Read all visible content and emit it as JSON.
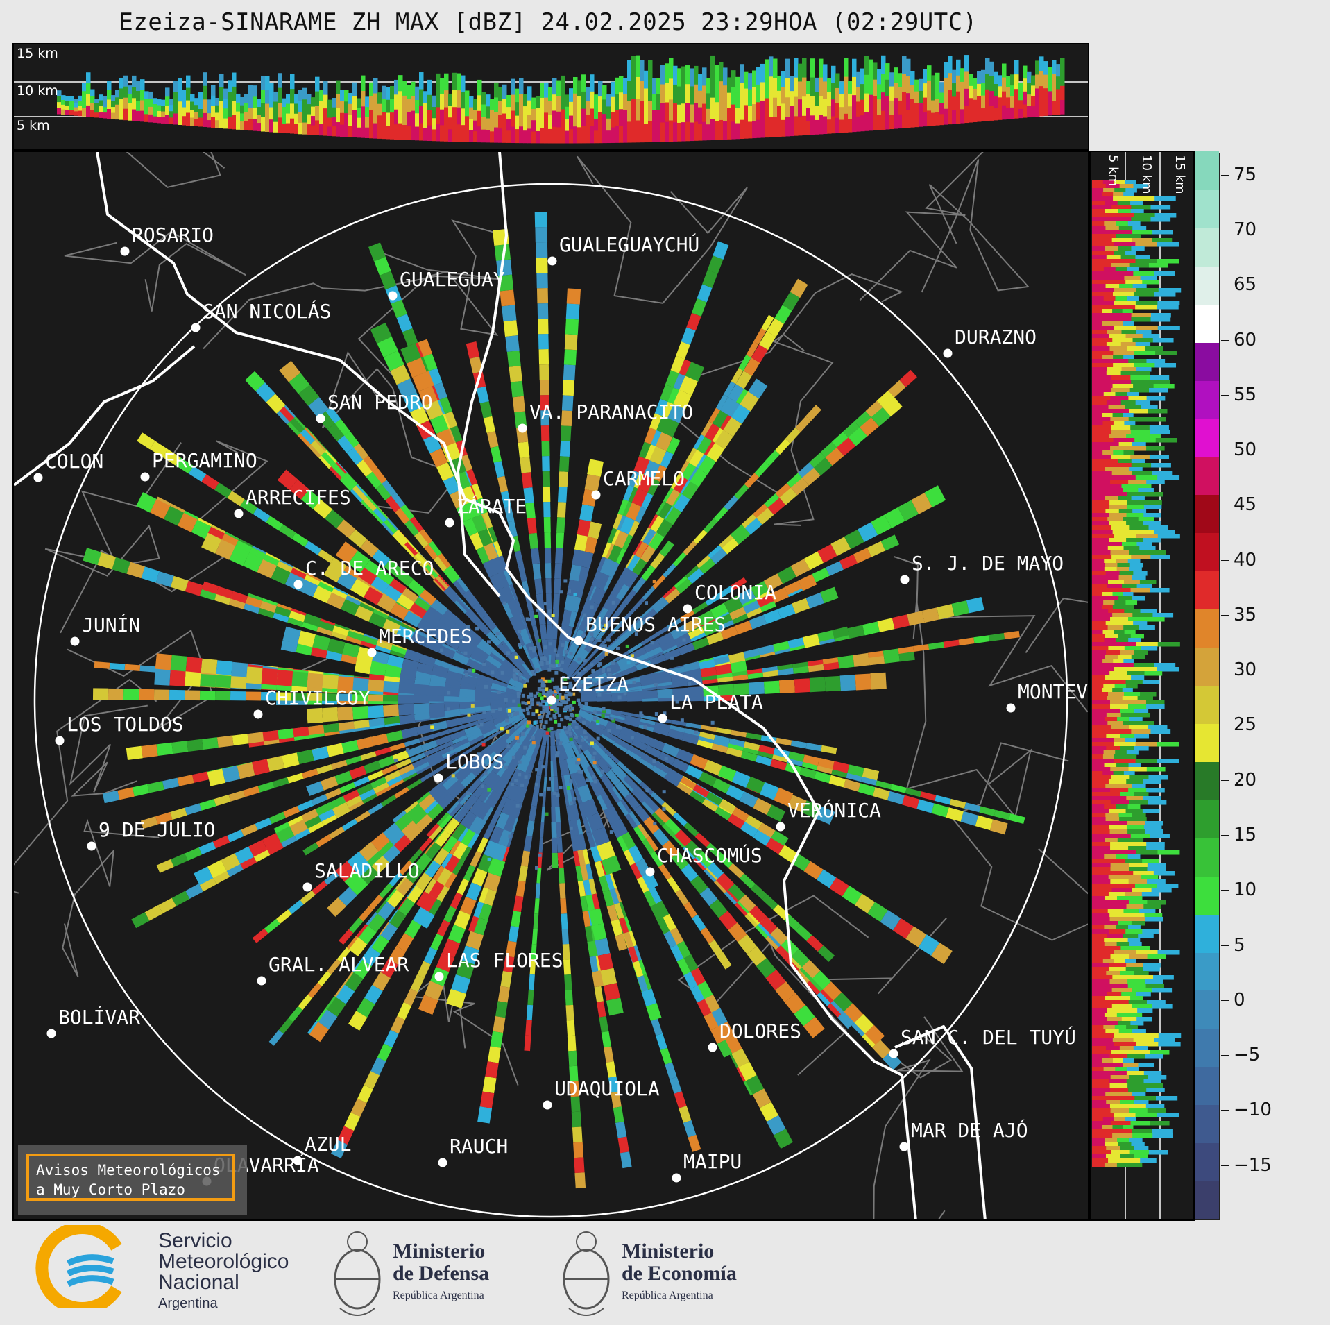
{
  "title": "Ezeiza-SINARAME ZH MAX [dBZ] 24.02.2025 23:29HOA (02:29UTC)",
  "top_panel": {
    "height_labels": [
      "15 km",
      "10 km",
      "5 km"
    ]
  },
  "right_panel": {
    "height_labels": [
      "5 km",
      "10 km",
      "15 km"
    ]
  },
  "colorbar": {
    "unit": "dBZ",
    "ticks": [
      "75",
      "70",
      "65",
      "60",
      "55",
      "50",
      "45",
      "40",
      "35",
      "30",
      "25",
      "20",
      "15",
      "10",
      "5",
      "0",
      "−5",
      "−10",
      "−15"
    ],
    "range": [
      -20,
      77
    ],
    "colors": [
      "#3b3f6b",
      "#3d4a7d",
      "#3f5a8f",
      "#3f6a9f",
      "#3f7aad",
      "#3e8ab9",
      "#3a9bc7",
      "#2fb0db",
      "#3dde3d",
      "#38c238",
      "#2e9e2e",
      "#287a28",
      "#e6e632",
      "#d4c836",
      "#d4a33a",
      "#e0852a",
      "#e02a2a",
      "#c01020",
      "#a00818",
      "#d01060",
      "#e010d0",
      "#b010c0",
      "#8a0ca0",
      "#ffffff",
      "#e0f0ea",
      "#c0ead8",
      "#a0e2cc",
      "#86d8bc"
    ]
  },
  "cities": [
    {
      "name": "ROSARIO"
    },
    {
      "name": "GUALEGUAYCHÚ"
    },
    {
      "name": "GUALEGUAY"
    },
    {
      "name": "SAN NICOLÁS"
    },
    {
      "name": "DURAZNO"
    },
    {
      "name": "SAN PEDRO"
    },
    {
      "name": "VA. PARANACITO"
    },
    {
      "name": "COLON"
    },
    {
      "name": "PERGAMINO"
    },
    {
      "name": "CARMELO"
    },
    {
      "name": "ARRECIFES"
    },
    {
      "name": "ZÁRATE"
    },
    {
      "name": "S. J. DE MAYO"
    },
    {
      "name": "C. DE ARECO"
    },
    {
      "name": "COLONIA"
    },
    {
      "name": "JUNÍN"
    },
    {
      "name": "BUENOS AIRES"
    },
    {
      "name": "MERCEDES"
    },
    {
      "name": "EZEIZA"
    },
    {
      "name": "MONTEV"
    },
    {
      "name": "CHIVILCOY"
    },
    {
      "name": "LA PLATA"
    },
    {
      "name": "LOS TOLDOS"
    },
    {
      "name": "LOBOS"
    },
    {
      "name": "VERÓNICA"
    },
    {
      "name": "9 DE JULIO"
    },
    {
      "name": "CHASCOMÚS"
    },
    {
      "name": "SALADILLO"
    },
    {
      "name": "GRAL. ALVEAR"
    },
    {
      "name": "LAS FLORES"
    },
    {
      "name": "BOLÍVAR"
    },
    {
      "name": "DOLORES"
    },
    {
      "name": "SAN C. DEL TUYÚ"
    },
    {
      "name": "UDAQUIOLA"
    },
    {
      "name": "MAR DE AJÓ"
    },
    {
      "name": "AZUL"
    },
    {
      "name": "RAUCH"
    },
    {
      "name": "MAIPU"
    },
    {
      "name": "OLAVARRÍA"
    }
  ],
  "warning_box": {
    "line1": "Avisos Meteorológicos",
    "line2": "a Muy Corto Plazo"
  },
  "logos": {
    "smn": {
      "line1": "Servicio",
      "line2": "Meteorológico",
      "line3": "Nacional",
      "line4": "Argentina"
    },
    "defensa": {
      "line1": "Ministerio",
      "line2": "de Defensa",
      "line3": "República Argentina"
    },
    "economia": {
      "line1": "Ministerio",
      "line2": "de Economía",
      "line3": "República Argentina"
    }
  }
}
